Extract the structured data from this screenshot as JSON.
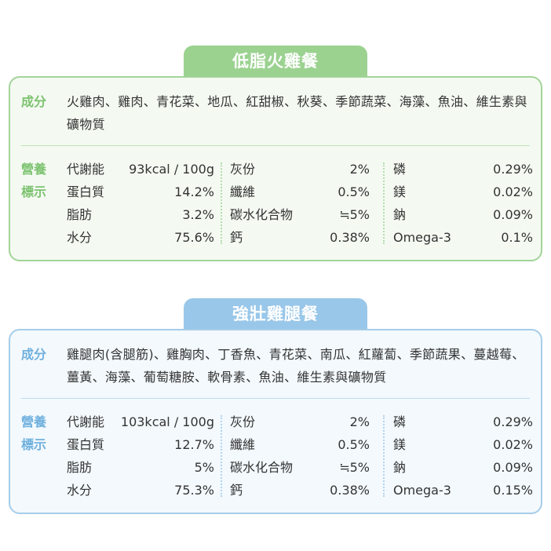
{
  "cards": [
    {
      "title": "低脂火雞餐",
      "ingredients_label": "成分",
      "ingredients": "火雞肉、雞肉、青花菜、地瓜、紅甜椒、秋葵、季節蔬菜、海藻、魚油、維生素與礦物質",
      "nutrition_label_1": "營養",
      "nutrition_label_2": "標示",
      "columns": [
        [
          {
            "name": "代謝能",
            "value": "93kcal / 100g"
          },
          {
            "name": "蛋白質",
            "value": "14.2%"
          },
          {
            "name": "脂肪",
            "value": "3.2%"
          },
          {
            "name": "水分",
            "value": "75.6%"
          }
        ],
        [
          {
            "name": "灰份",
            "value": "2%"
          },
          {
            "name": "纖維",
            "value": "0.5%"
          },
          {
            "name": "碳水化合物",
            "value": "≒5%"
          },
          {
            "name": "鈣",
            "value": "0.38%"
          }
        ],
        [
          {
            "name": "磷",
            "value": "0.29%"
          },
          {
            "name": "鎂",
            "value": "0.02%"
          },
          {
            "name": "鈉",
            "value": "0.09%"
          },
          {
            "name": "Omega-3",
            "value": "0.1%"
          }
        ]
      ]
    },
    {
      "title": "強壯雞腿餐",
      "ingredients_label": "成分",
      "ingredients": "雞腿肉(含腿筋)、雞胸肉、丁香魚、青花菜、南瓜、紅蘿蔔、季節蔬果、蔓越莓、薑黃、海藻、葡萄糖胺、軟骨素、魚油、維生素與礦物質",
      "nutrition_label_1": "營養",
      "nutrition_label_2": "標示",
      "columns": [
        [
          {
            "name": "代謝能",
            "value": "103kcal / 100g"
          },
          {
            "name": "蛋白質",
            "value": "12.7%"
          },
          {
            "name": "脂肪",
            "value": "5%"
          },
          {
            "name": "水分",
            "value": "75.3%"
          }
        ],
        [
          {
            "name": "灰份",
            "value": "2%"
          },
          {
            "name": "纖維",
            "value": "0.5%"
          },
          {
            "name": "碳水化合物",
            "value": "≒5%"
          },
          {
            "name": "鈣",
            "value": "0.38%"
          }
        ],
        [
          {
            "name": "磷",
            "value": "0.29%"
          },
          {
            "name": "鎂",
            "value": "0.02%"
          },
          {
            "name": "鈉",
            "value": "0.09%"
          },
          {
            "name": "Omega-3",
            "value": "0.15%"
          }
        ]
      ]
    }
  ]
}
